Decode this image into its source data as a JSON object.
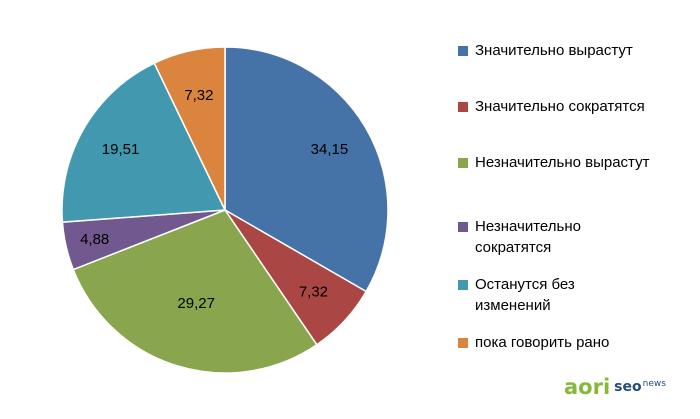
{
  "chart_data": {
    "type": "pie",
    "categories": [
      "Значительно вырастут",
      "Значительно сократятся",
      "Незначительно вырастут",
      "Незначительно сократятся",
      "Останутся без изменений",
      "пока говорить рано"
    ],
    "values": [
      34.15,
      7.32,
      29.27,
      4.88,
      19.51,
      7.32
    ],
    "value_labels": [
      "34,15",
      "7,32",
      "29,27",
      "4,88",
      "19,51",
      "7,32"
    ],
    "colors": [
      "#4572a7",
      "#aa4643",
      "#89a54e",
      "#71588f",
      "#4198af",
      "#db843d"
    ],
    "start_angle_deg": 0,
    "direction": "clockwise",
    "legend_position": "right",
    "legend_entries": [
      {
        "label": "Значительно вырастут",
        "color": "#4572a7"
      },
      {
        "label": "Значительно сократятся",
        "color": "#aa4643"
      },
      {
        "label": "Незначительно вырастут",
        "color": "#89a54e"
      },
      {
        "label": "Незначительно сократятся",
        "color": "#71588f"
      },
      {
        "label": "Останутся без изменений",
        "color": "#4198af"
      },
      {
        "label": "пока говорить рано",
        "color": "#db843d"
      }
    ]
  },
  "logo": {
    "brand": "aori",
    "partner_seo": "seo",
    "partner_news": "news",
    "brand_color": "#86b93b",
    "partner_color": "#1f4e79"
  }
}
